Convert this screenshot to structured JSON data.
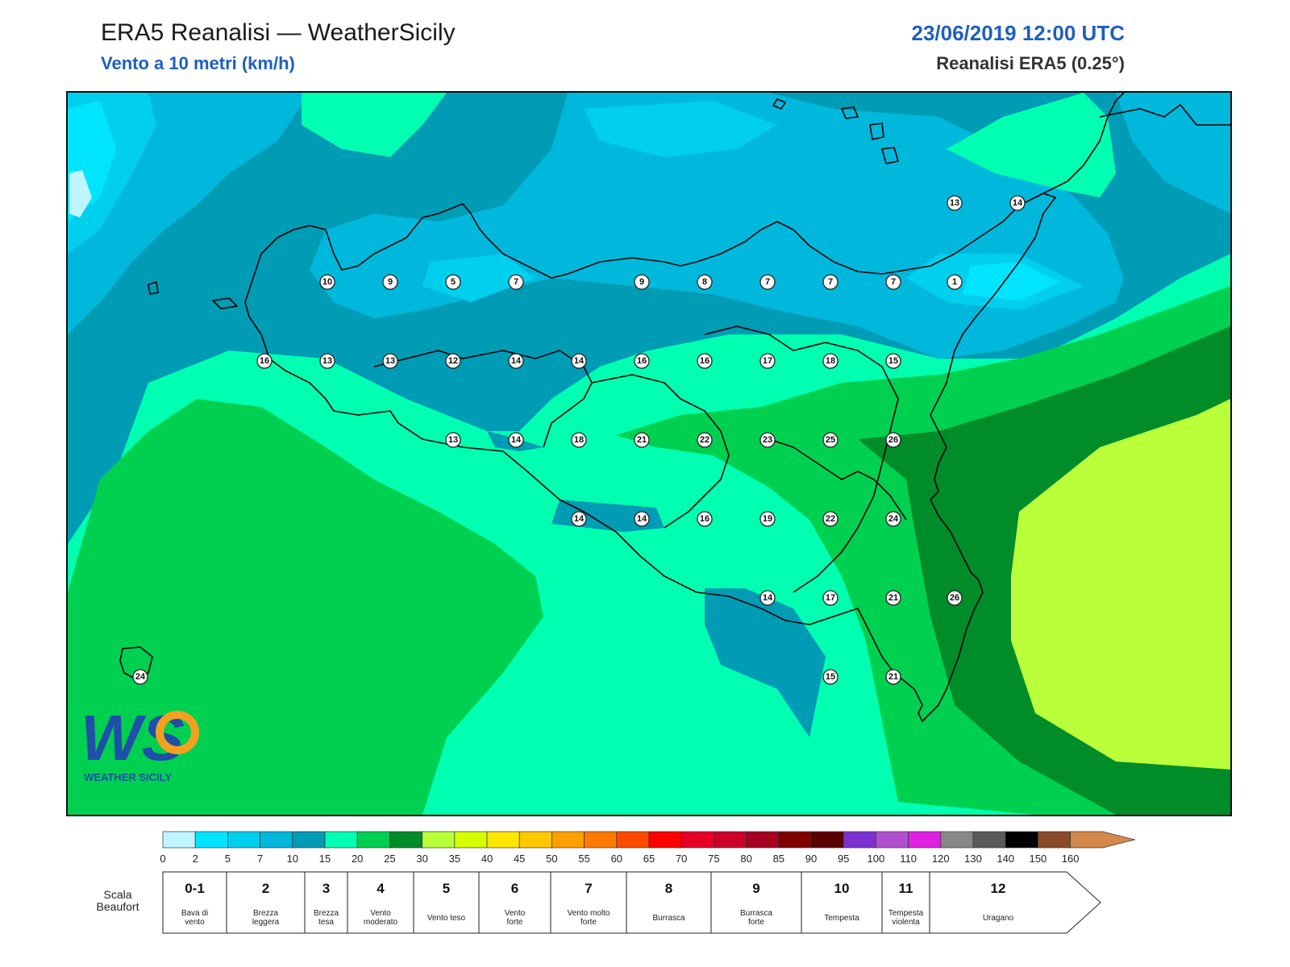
{
  "header": {
    "title": "ERA5 Reanalisi — WeatherSicily",
    "subtitle": "Vento a 10 metri (km/h)",
    "datetime": "23/06/2019 12:00 UTC",
    "source": "Reanalisi ERA5 (0.25°)"
  },
  "logo": {
    "letters": "WS",
    "text": "WEATHER SICILY"
  },
  "colors": {
    "sea_outline": "#000000",
    "band_colors": [
      "#bff5ff",
      "#00e5ff",
      "#00cfee",
      "#00b8dc",
      "#009bb4",
      "#00ffb0",
      "#00d050",
      "#008c28",
      "#b9ff3a",
      "#d4ff00",
      "#ffe800",
      "#ffc800",
      "#ffa000",
      "#ff7800",
      "#ff4a00",
      "#ff0000",
      "#e60028",
      "#cc0028",
      "#a80020",
      "#800000",
      "#5a0000",
      "#7b30d0",
      "#b050d0",
      "#e020e0",
      "#888888",
      "#5a5a5a",
      "#000000",
      "#8b4a2a",
      "#d4884a"
    ]
  },
  "colorbar": {
    "ticks": [
      "0",
      "2",
      "5",
      "7",
      "10",
      "15",
      "20",
      "25",
      "30",
      "35",
      "40",
      "45",
      "50",
      "55",
      "60",
      "65",
      "70",
      "75",
      "80",
      "85",
      "90",
      "95",
      "100",
      "110",
      "120",
      "130",
      "140",
      "150",
      "160"
    ]
  },
  "beaufort": {
    "label_line1": "Scala",
    "label_line2": "Beaufort",
    "cells": [
      {
        "num": "0-1",
        "d1": "Bava di",
        "d2": "vento"
      },
      {
        "num": "2",
        "d1": "Brezza",
        "d2": "leggera"
      },
      {
        "num": "3",
        "d1": "Brezza",
        "d2": "tesa"
      },
      {
        "num": "4",
        "d1": "Vento",
        "d2": "moderato"
      },
      {
        "num": "5",
        "d1": "Vento teso",
        "d2": ""
      },
      {
        "num": "6",
        "d1": "Vento",
        "d2": "forte"
      },
      {
        "num": "7",
        "d1": "Vento molto",
        "d2": "forte"
      },
      {
        "num": "8",
        "d1": "Burrasca",
        "d2": ""
      },
      {
        "num": "9",
        "d1": "Burrasca",
        "d2": "forte"
      },
      {
        "num": "10",
        "d1": "Tempesta",
        "d2": ""
      },
      {
        "num": "11",
        "d1": "Tempesta",
        "d2": "violenta"
      },
      {
        "num": "12",
        "d1": "Uragano",
        "d2": ""
      }
    ]
  },
  "stations": [
    "13",
    "14",
    "10",
    "9",
    "5",
    "7",
    "9",
    "8",
    "7",
    "7",
    "7",
    "1",
    "16",
    "13",
    "13",
    "12",
    "14",
    "14",
    "16",
    "16",
    "17",
    "18",
    "15",
    "13",
    "14",
    "18",
    "21",
    "22",
    "23",
    "25",
    "26",
    "14",
    "14",
    "16",
    "19",
    "22",
    "24",
    "14",
    "17",
    "21",
    "26",
    "24",
    "15",
    "21"
  ]
}
